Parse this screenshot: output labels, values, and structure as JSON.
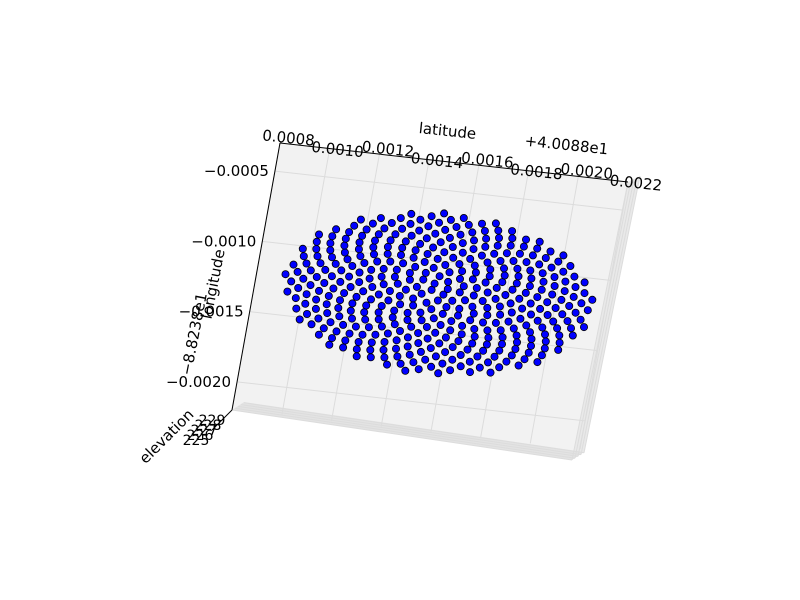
{
  "chart_data": {
    "type": "scatter",
    "projection": "3d",
    "xlabel": "latitude",
    "ylabel": "longitude",
    "zlabel": "elevation",
    "x_offset_label": "+4.0088e1",
    "y_offset_label": "−8.8238e1",
    "x_ticks": [
      "0.0008",
      "0.0010",
      "0.0012",
      "0.0014",
      "0.0016",
      "0.0018",
      "0.0020",
      "0.0022"
    ],
    "y_ticks": [
      "−0.0005",
      "−0.0010",
      "−0.0015",
      "−0.0020"
    ],
    "z_ticks": [
      "225",
      "226",
      "227",
      "228",
      "229"
    ],
    "xlim": [
      0.0008,
      0.0022
    ],
    "ylim": [
      -0.0022,
      -0.0003
    ],
    "grid": true,
    "marker_color": "#0000ff",
    "marker_edge_color": "#000000",
    "pattern": "sunflower disk",
    "point_count": 400,
    "center": {
      "x": 0.00153,
      "y": -0.00123
    },
    "radius": 0.00062
  }
}
